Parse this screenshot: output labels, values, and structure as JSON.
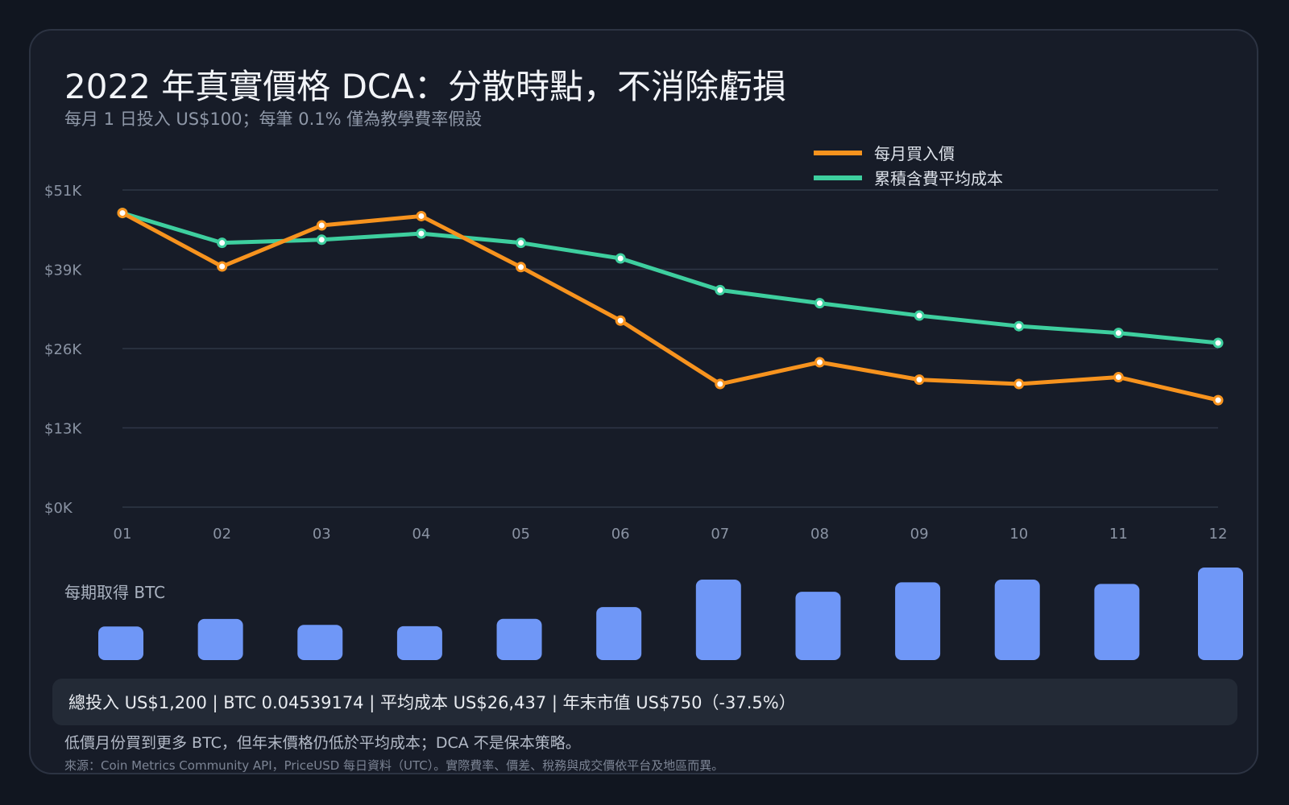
{
  "header": {
    "title": "2022 年真實價格 DCA：分散時點，不消除虧損",
    "subtitle": "每月 1 日投入 US$100；每筆 0.1% 僅為教學費率假設"
  },
  "chart_data": [
    {
      "type": "line",
      "x": [
        "01",
        "02",
        "03",
        "04",
        "05",
        "06",
        "07",
        "08",
        "09",
        "10",
        "11",
        "12"
      ],
      "y_ticks": [
        "$0K",
        "$13K",
        "$26K",
        "$39K",
        "$51K"
      ],
      "ylim": [
        0,
        51000
      ],
      "grid": true,
      "legend": "top-right",
      "series": [
        {
          "name": "每月買入價",
          "color": "#f7931e",
          "values": [
            47300,
            38700,
            45300,
            46800,
            38600,
            30000,
            19800,
            23300,
            20500,
            19800,
            20900,
            17200
          ]
        },
        {
          "name": "累積含費平均成本",
          "color": "#3ecf9f",
          "values": [
            47300,
            42500,
            43000,
            44000,
            42500,
            40000,
            34900,
            32800,
            30800,
            29100,
            28000,
            26400
          ]
        }
      ]
    },
    {
      "type": "bar",
      "title": "每期取得 BTC",
      "color": "#6f97f7",
      "categories": [
        "01",
        "02",
        "03",
        "04",
        "05",
        "06",
        "07",
        "08",
        "09",
        "10",
        "11",
        "12"
      ],
      "values": [
        0.00211,
        0.00258,
        0.00221,
        0.00213,
        0.00259,
        0.00333,
        0.00505,
        0.00429,
        0.00488,
        0.00505,
        0.00478,
        0.00581
      ]
    }
  ],
  "summary": {
    "text": "總投入 US$1,200 | BTC 0.04539174 | 平均成本 US$26,437 | 年末市值 US$750（-37.5%）"
  },
  "note": "低價月份買到更多 BTC，但年末價格仍低於平均成本；DCA 不是保本策略。",
  "source": "來源：Coin Metrics Community API，PriceUSD 每日資料（UTC）。實際費率、價差、稅務與成交價依平台及地區而異。"
}
